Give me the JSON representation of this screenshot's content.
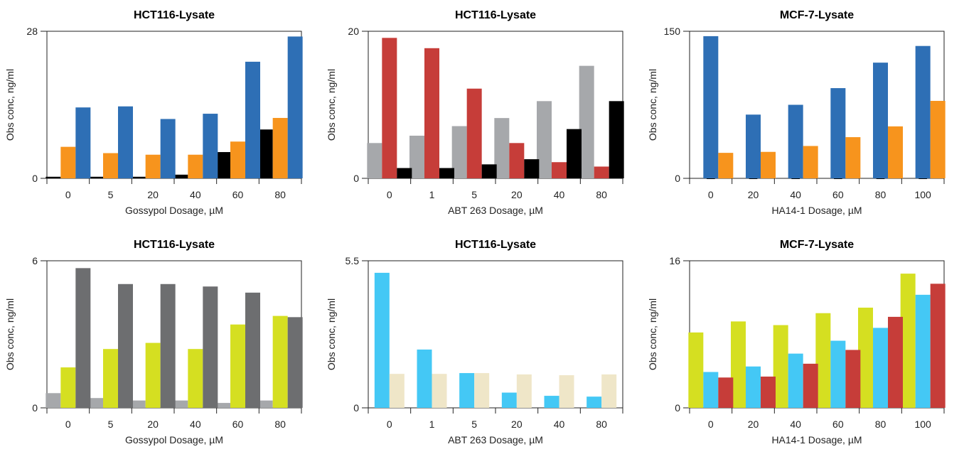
{
  "chart_data": [
    {
      "type": "bar",
      "title": "HCT116-Lysate",
      "xlabel": "Gossypol Dosage, µM",
      "ylabel": "Obs conc, ng/ml",
      "ylim": [
        0,
        28
      ],
      "yticks": [
        "0",
        "28"
      ],
      "categories": [
        "0",
        "5",
        "20",
        "40",
        "60",
        "80"
      ],
      "series": [
        {
          "color": "#000000",
          "values": [
            0.3,
            0.3,
            0.3,
            0.7,
            5.0,
            9.3
          ]
        },
        {
          "color": "#f7941d",
          "values": [
            6.0,
            4.8,
            4.5,
            4.5,
            7.0,
            11.5
          ]
        },
        {
          "color": "#2e6fb5",
          "values": [
            13.5,
            13.7,
            11.3,
            12.3,
            22.2,
            27.0
          ]
        }
      ]
    },
    {
      "type": "bar",
      "title": "HCT116-Lysate",
      "xlabel": "ABT 263 Dosage, µM",
      "ylabel": "Obs conc, ng/ml",
      "ylim": [
        0,
        20
      ],
      "yticks": [
        "0",
        "20"
      ],
      "categories": [
        "0",
        "1",
        "5",
        "20",
        "40",
        "80"
      ],
      "series": [
        {
          "color": "#a6a8ab",
          "values": [
            4.8,
            5.8,
            7.1,
            8.2,
            10.5,
            15.3
          ]
        },
        {
          "color": "#c63d39",
          "values": [
            19.1,
            17.7,
            12.2,
            4.8,
            2.2,
            1.6
          ]
        },
        {
          "color": "#000000",
          "values": [
            1.4,
            1.4,
            1.9,
            2.6,
            6.7,
            10.5
          ]
        }
      ]
    },
    {
      "type": "bar",
      "title": "MCF-7-Lysate",
      "xlabel": "HA14-1 Dosage, µM",
      "ylabel": "Obs conc, ng/ml",
      "ylim": [
        0,
        150
      ],
      "yticks": [
        "0",
        "150"
      ],
      "categories": [
        "0",
        "20",
        "40",
        "60",
        "80",
        "100"
      ],
      "series": [
        {
          "color": "#000000",
          "values": [
            0,
            0,
            0,
            0,
            0,
            0
          ],
          "marker": "triangle"
        },
        {
          "color": "#2e6fb5",
          "values": [
            145,
            65,
            75,
            92,
            118,
            135
          ]
        },
        {
          "color": "#f7941d",
          "values": [
            26,
            27,
            33,
            42,
            53,
            79
          ]
        }
      ]
    },
    {
      "type": "bar",
      "title": "HCT116-Lysate",
      "xlabel": "Gossypol Dosage, µM",
      "ylabel": "Obs conc, ng/ml",
      "ylim": [
        0,
        6
      ],
      "yticks": [
        "0",
        "6"
      ],
      "categories": [
        "0",
        "5",
        "20",
        "40",
        "60",
        "80"
      ],
      "series": [
        {
          "color": "#a6a8ab",
          "values": [
            0.6,
            0.4,
            0.3,
            0.3,
            0.2,
            0.3
          ]
        },
        {
          "color": "#d5df21",
          "values": [
            1.65,
            2.4,
            2.65,
            2.4,
            3.4,
            3.75
          ]
        },
        {
          "color": "#6d6e70",
          "values": [
            5.7,
            5.05,
            5.05,
            4.95,
            4.7,
            3.7
          ]
        }
      ]
    },
    {
      "type": "bar",
      "title": "HCT116-Lysate",
      "xlabel": "ABT 263 Dosage, µM",
      "ylabel": "Obs conc, ng/ml",
      "ylim": [
        0,
        5.5
      ],
      "yticks": [
        "0",
        "5.5"
      ],
      "categories": [
        "0",
        "1",
        "5",
        "20",
        "40",
        "80"
      ],
      "series": [
        {
          "color": "#44c8f5",
          "values": [
            5.05,
            2.18,
            1.3,
            0.57,
            0.45,
            0.42
          ]
        },
        {
          "color": "#efe6c8",
          "values": [
            1.27,
            1.27,
            1.3,
            1.25,
            1.22,
            1.25
          ]
        }
      ]
    },
    {
      "type": "bar",
      "title": "MCF-7-Lysate",
      "xlabel": "HA14-1 Dosage, µM",
      "ylabel": "Obs conc, ng/ml",
      "ylim": [
        0,
        16
      ],
      "yticks": [
        "0",
        "16"
      ],
      "categories": [
        "0",
        "20",
        "40",
        "60",
        "80",
        "100"
      ],
      "series": [
        {
          "color": "#d5df21",
          "values": [
            8.2,
            9.4,
            9.0,
            10.3,
            10.9,
            14.6
          ]
        },
        {
          "color": "#44c8f5",
          "values": [
            3.9,
            4.5,
            5.9,
            7.3,
            8.7,
            12.3
          ]
        },
        {
          "color": "#c63d39",
          "values": [
            3.3,
            3.4,
            4.8,
            6.3,
            9.9,
            13.5
          ]
        }
      ]
    }
  ]
}
